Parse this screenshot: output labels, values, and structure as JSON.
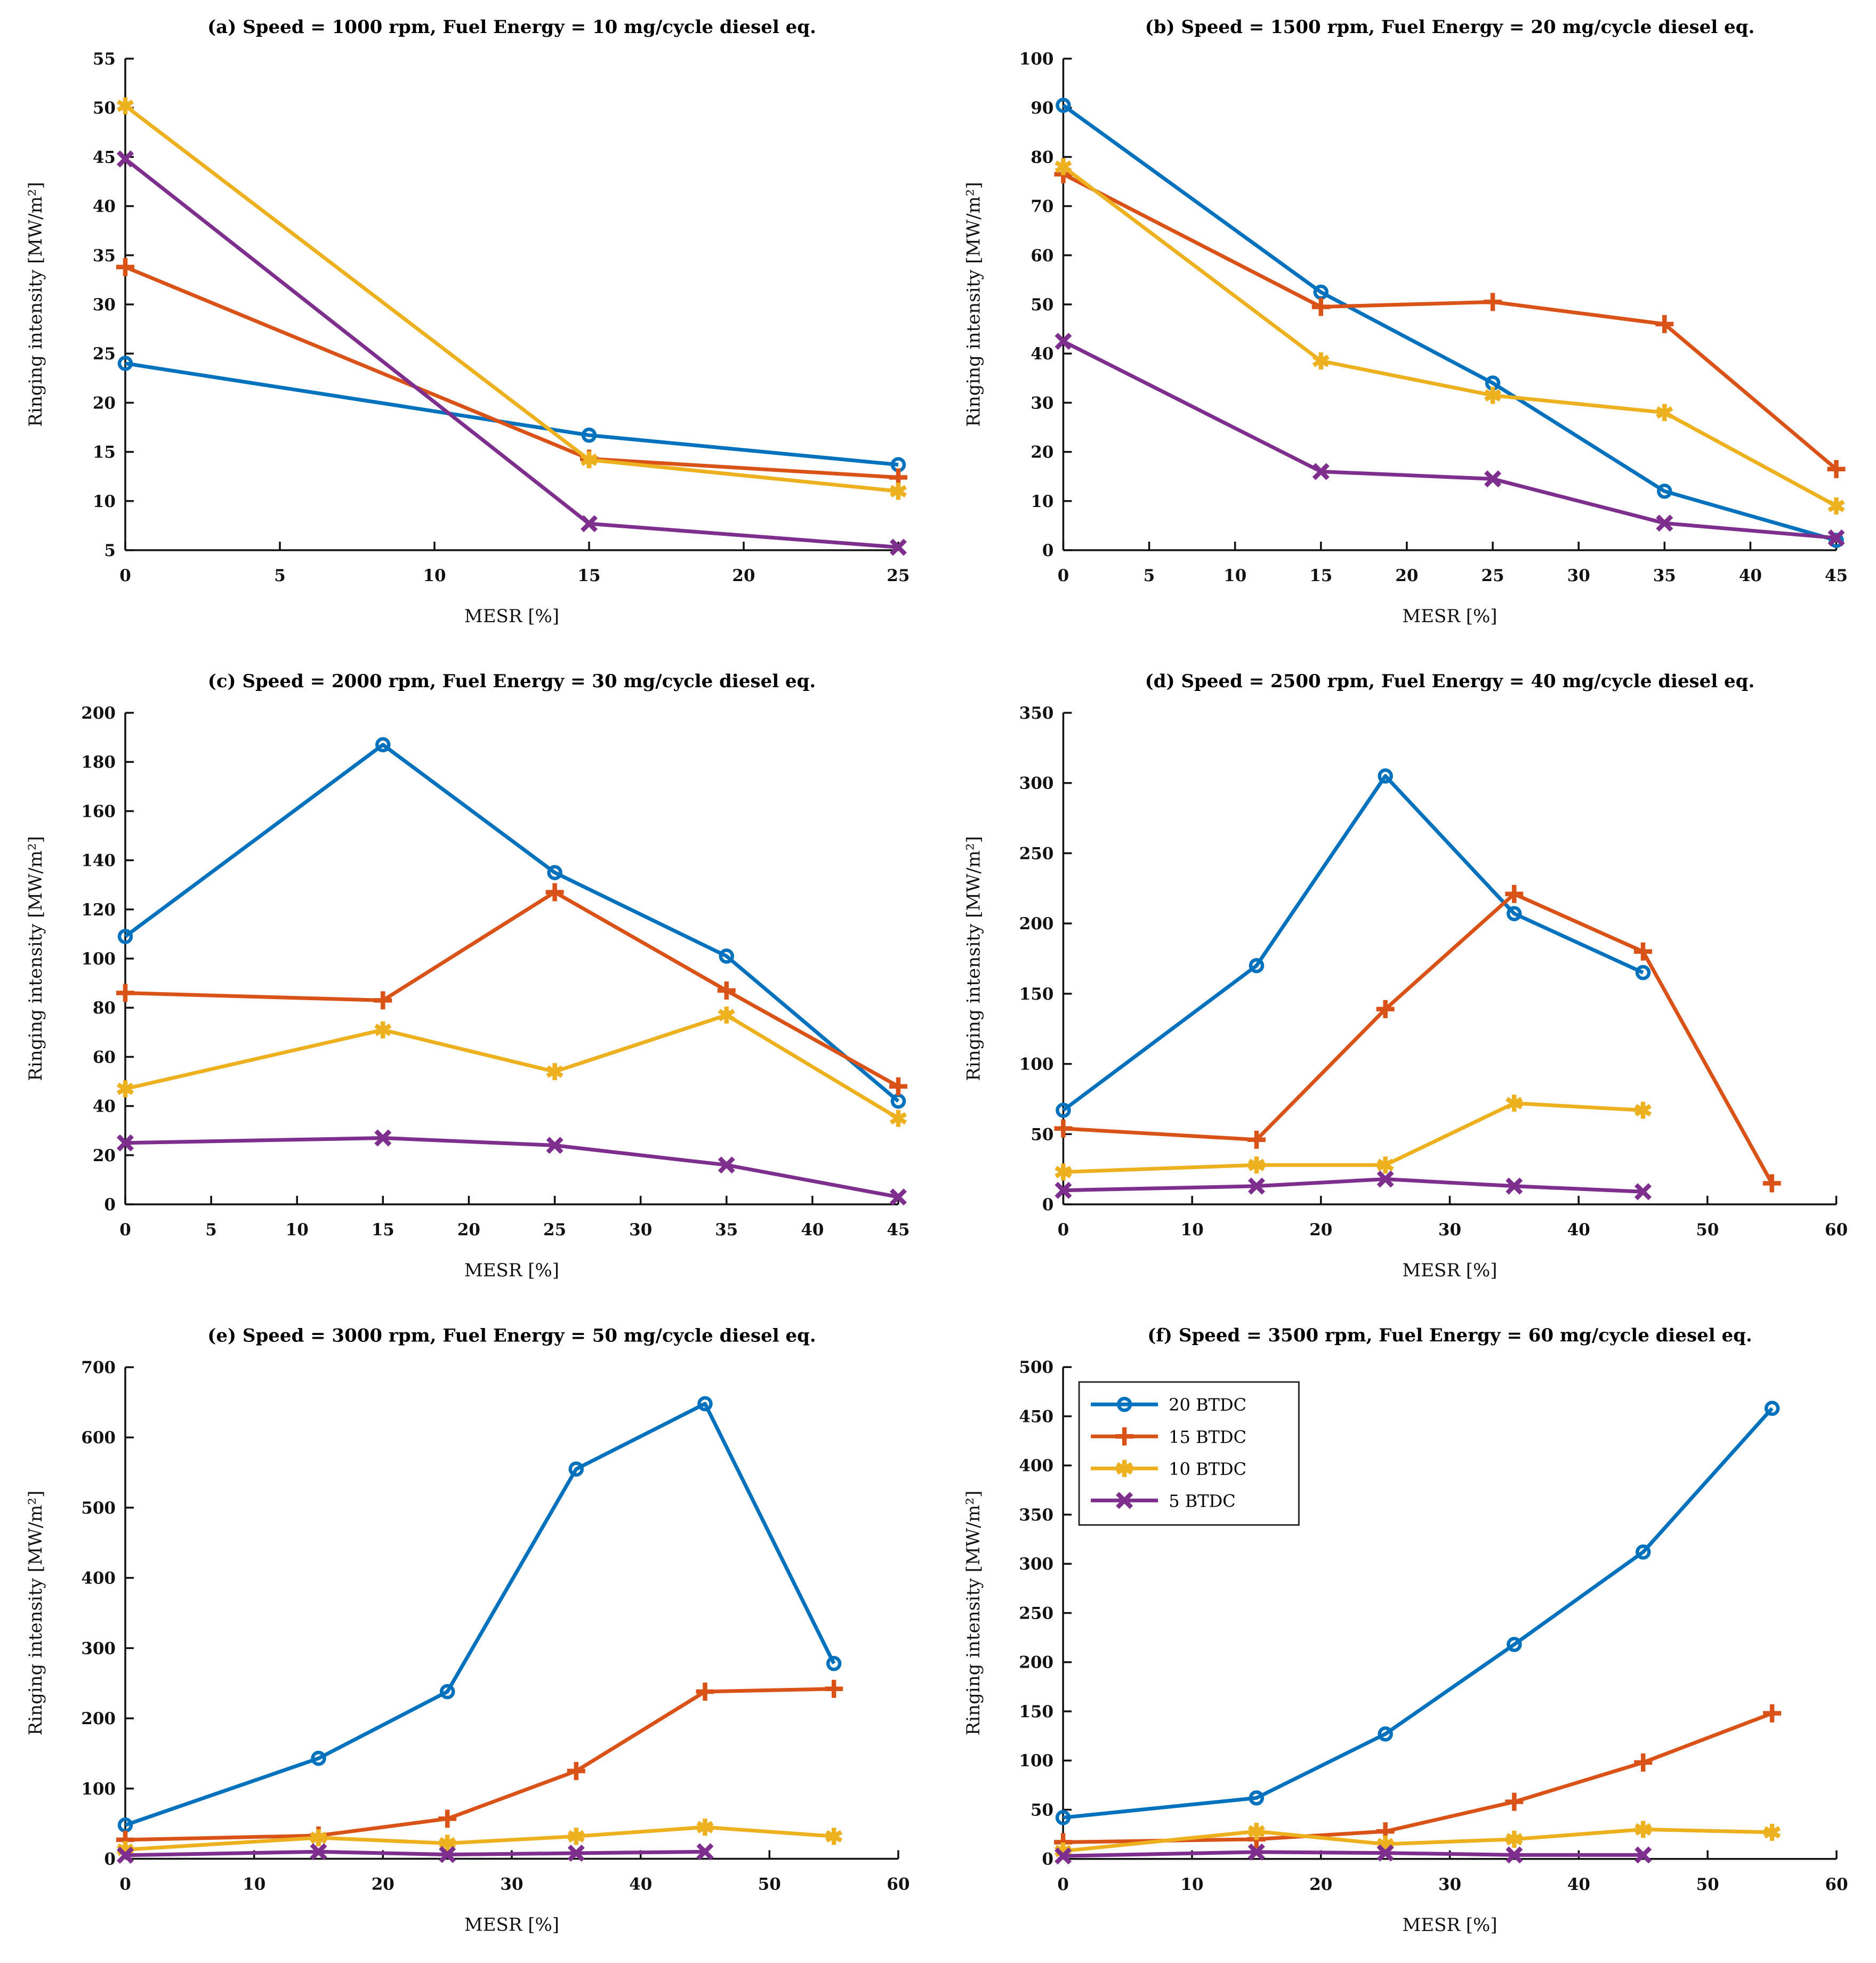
{
  "axes_common": {
    "xlabel": "MESR [%]",
    "ylabel": "Ringing intensity [MW/m²]"
  },
  "legend": {
    "location": "top-left of panel (f)",
    "entries": [
      {
        "label": "20 BTDC",
        "color": "#0072BD",
        "marker": "circle"
      },
      {
        "label": "15 BTDC",
        "color": "#D95319",
        "marker": "plus"
      },
      {
        "label": "10 BTDC",
        "color": "#EDB120",
        "marker": "hexagram"
      },
      {
        "label": "5 BTDC",
        "color": "#7E2F8E",
        "marker": "x"
      }
    ]
  },
  "chart_data": [
    {
      "id": "a",
      "type": "line",
      "title": "(a) Speed = 1000 rpm, Fuel Energy = 10 mg/cycle diesel eq.",
      "xlabel": "MESR [%]",
      "ylabel": "Ringing intensity [MW/m²]",
      "xlim": [
        0,
        25
      ],
      "ylim": [
        5,
        55
      ],
      "xticks": [
        0,
        5,
        10,
        15,
        20,
        25
      ],
      "yticks": [
        5,
        10,
        15,
        20,
        25,
        30,
        35,
        40,
        45,
        50,
        55
      ],
      "grid": false,
      "show_legend": false,
      "series": [
        {
          "name": "20 BTDC",
          "x": [
            0,
            15,
            25
          ],
          "y": [
            24.0,
            16.7,
            13.7
          ]
        },
        {
          "name": "15 BTDC",
          "x": [
            0,
            15,
            25
          ],
          "y": [
            33.8,
            14.3,
            12.4
          ]
        },
        {
          "name": "10 BTDC",
          "x": [
            0,
            15,
            25
          ],
          "y": [
            50.2,
            14.2,
            11.0
          ]
        },
        {
          "name": "5 BTDC",
          "x": [
            0,
            15,
            25
          ],
          "y": [
            44.8,
            7.7,
            5.3
          ]
        }
      ]
    },
    {
      "id": "b",
      "type": "line",
      "title": "(b) Speed = 1500 rpm, Fuel Energy = 20 mg/cycle diesel eq.",
      "xlabel": "MESR [%]",
      "ylabel": "Ringing intensity [MW/m²]",
      "xlim": [
        0,
        45
      ],
      "ylim": [
        0,
        100
      ],
      "xticks": [
        0,
        5,
        10,
        15,
        20,
        25,
        30,
        35,
        40,
        45
      ],
      "yticks": [
        0,
        10,
        20,
        30,
        40,
        50,
        60,
        70,
        80,
        90,
        100
      ],
      "grid": false,
      "show_legend": false,
      "series": [
        {
          "name": "20 BTDC",
          "x": [
            0,
            15,
            25,
            35,
            45
          ],
          "y": [
            90.5,
            52.5,
            34.0,
            12.0,
            2.0
          ]
        },
        {
          "name": "15 BTDC",
          "x": [
            0,
            15,
            25,
            35,
            45
          ],
          "y": [
            76.5,
            49.5,
            50.5,
            46.0,
            16.5
          ]
        },
        {
          "name": "10 BTDC",
          "x": [
            0,
            15,
            25,
            35,
            45
          ],
          "y": [
            78.0,
            38.5,
            31.5,
            28.0,
            9.0
          ]
        },
        {
          "name": "5 BTDC",
          "x": [
            0,
            15,
            25,
            35,
            45
          ],
          "y": [
            42.5,
            16.0,
            14.5,
            5.5,
            2.5
          ]
        }
      ]
    },
    {
      "id": "c",
      "type": "line",
      "title": "(c) Speed = 2000 rpm, Fuel Energy = 30 mg/cycle diesel eq.",
      "xlabel": "MESR [%]",
      "ylabel": "Ringing intensity [MW/m²]",
      "xlim": [
        0,
        45
      ],
      "ylim": [
        0,
        200
      ],
      "xticks": [
        0,
        5,
        10,
        15,
        20,
        25,
        30,
        35,
        40,
        45
      ],
      "yticks": [
        0,
        20,
        40,
        60,
        80,
        100,
        120,
        140,
        160,
        180,
        200
      ],
      "grid": false,
      "show_legend": false,
      "series": [
        {
          "name": "20 BTDC",
          "x": [
            0,
            15,
            25,
            35,
            45
          ],
          "y": [
            109,
            187,
            135,
            101,
            42
          ]
        },
        {
          "name": "15 BTDC",
          "x": [
            0,
            15,
            25,
            35,
            45
          ],
          "y": [
            86,
            83,
            127,
            87,
            48
          ]
        },
        {
          "name": "10 BTDC",
          "x": [
            0,
            15,
            25,
            35,
            45
          ],
          "y": [
            47,
            71,
            54,
            77,
            35
          ]
        },
        {
          "name": "5 BTDC",
          "x": [
            0,
            15,
            25,
            35,
            45
          ],
          "y": [
            25,
            27,
            24,
            16,
            3
          ]
        }
      ]
    },
    {
      "id": "d",
      "type": "line",
      "title": "(d) Speed = 2500 rpm, Fuel Energy = 40 mg/cycle diesel eq.",
      "xlabel": "MESR [%]",
      "ylabel": "Ringing intensity [MW/m²]",
      "xlim": [
        0,
        60
      ],
      "ylim": [
        0,
        350
      ],
      "xticks": [
        0,
        10,
        20,
        30,
        40,
        50,
        60
      ],
      "yticks": [
        0,
        50,
        100,
        150,
        200,
        250,
        300,
        350
      ],
      "grid": false,
      "show_legend": false,
      "series": [
        {
          "name": "20 BTDC",
          "x": [
            0,
            15,
            25,
            35,
            45
          ],
          "y": [
            67,
            170,
            305,
            207,
            165
          ]
        },
        {
          "name": "15 BTDC",
          "x": [
            0,
            15,
            25,
            35,
            45,
            55
          ],
          "y": [
            54,
            46,
            139,
            221,
            180,
            15
          ]
        },
        {
          "name": "10 BTDC",
          "x": [
            0,
            15,
            25,
            35,
            45
          ],
          "y": [
            23,
            28,
            28,
            72,
            67
          ]
        },
        {
          "name": "5 BTDC",
          "x": [
            0,
            15,
            25,
            35,
            45
          ],
          "y": [
            10,
            13,
            18,
            13,
            9
          ]
        }
      ]
    },
    {
      "id": "e",
      "type": "line",
      "title": "(e) Speed = 3000 rpm, Fuel Energy = 50 mg/cycle diesel eq.",
      "xlabel": "MESR [%]",
      "ylabel": "Ringing intensity [MW/m²]",
      "xlim": [
        0,
        60
      ],
      "ylim": [
        0,
        700
      ],
      "xticks": [
        0,
        10,
        20,
        30,
        40,
        50,
        60
      ],
      "yticks": [
        0,
        100,
        200,
        300,
        400,
        500,
        600,
        700
      ],
      "grid": false,
      "show_legend": false,
      "series": [
        {
          "name": "20 BTDC",
          "x": [
            0,
            15,
            25,
            35,
            45,
            55
          ],
          "y": [
            48,
            143,
            238,
            555,
            648,
            278
          ]
        },
        {
          "name": "15 BTDC",
          "x": [
            0,
            15,
            25,
            35,
            45,
            55
          ],
          "y": [
            27,
            33,
            57,
            125,
            238,
            242
          ]
        },
        {
          "name": "10 BTDC",
          "x": [
            0,
            15,
            25,
            35,
            45,
            55
          ],
          "y": [
            13,
            30,
            22,
            32,
            45,
            32
          ]
        },
        {
          "name": "5 BTDC",
          "x": [
            0,
            15,
            25,
            35,
            45
          ],
          "y": [
            5,
            10,
            6,
            8,
            10
          ]
        }
      ]
    },
    {
      "id": "f",
      "type": "line",
      "title": "(f) Speed = 3500 rpm, Fuel Energy = 60 mg/cycle diesel eq.",
      "xlabel": "MESR [%]",
      "ylabel": "Ringing intensity [MW/m²]",
      "xlim": [
        0,
        60
      ],
      "ylim": [
        0,
        500
      ],
      "xticks": [
        0,
        10,
        20,
        30,
        40,
        50,
        60
      ],
      "yticks": [
        0,
        50,
        100,
        150,
        200,
        250,
        300,
        350,
        400,
        450,
        500
      ],
      "grid": false,
      "show_legend": true,
      "series": [
        {
          "name": "20 BTDC",
          "x": [
            0,
            15,
            25,
            35,
            45,
            55
          ],
          "y": [
            42,
            62,
            127,
            218,
            312,
            458
          ]
        },
        {
          "name": "15 BTDC",
          "x": [
            0,
            15,
            25,
            35,
            45,
            55
          ],
          "y": [
            17,
            20,
            28,
            58,
            98,
            148
          ]
        },
        {
          "name": "10 BTDC",
          "x": [
            0,
            15,
            25,
            35,
            45,
            55
          ],
          "y": [
            8,
            28,
            15,
            20,
            30,
            27
          ]
        },
        {
          "name": "5 BTDC",
          "x": [
            0,
            15,
            25,
            35,
            45
          ],
          "y": [
            3,
            7,
            6,
            4,
            4
          ]
        }
      ]
    }
  ]
}
